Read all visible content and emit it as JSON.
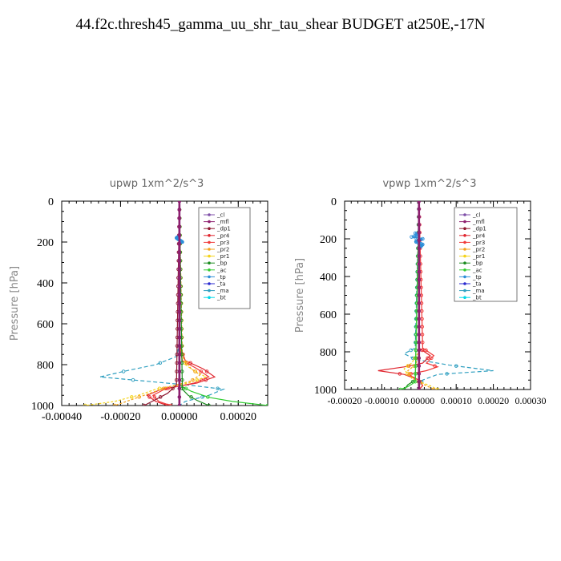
{
  "title": "44.f2c.thresh45_gamma_uu_shr_tau_shear  BUDGET at250E,-17N",
  "legend_entries": [
    "_cl",
    "_mfl",
    "_dp1",
    "_pr4",
    "_pr3",
    "_pr2",
    "_pr1",
    "_bp",
    "_ac",
    "_tp",
    "_ta",
    "_ma",
    "_bt"
  ],
  "series_colors": {
    "_cl": "#7f4fa8",
    "_mfl": "#8e1f6f",
    "_dp1": "#8e1830",
    "_pr4": "#e0262f",
    "_pr3": "#f03a3a",
    "_pr2": "#f3a31e",
    "_pr1": "#f4d31a",
    "_bp": "#1c8c20",
    "_ac": "#33cc33",
    "_tp": "#2c8ed8",
    "_ta": "#2a2ad0",
    "_ma": "#2f9fc0",
    "_bt": "#00d8e8"
  },
  "chart_data": [
    {
      "type": "line",
      "title": "upwp   1xm^2/s^3",
      "ylabel": "Pressure  [hPa]",
      "xlabel": "",
      "xlim": [
        -0.0004,
        0.0003
      ],
      "ylim": [
        1000,
        0
      ],
      "xticks": [
        "-0.00040",
        "-0.00020",
        "0.00000",
        "0.00020"
      ],
      "xtick_values": [
        -0.0004,
        -0.0002,
        0.0,
        0.0002
      ],
      "yticks": [
        "0",
        "200",
        "400",
        "600",
        "800",
        "1000"
      ],
      "ytick_values": [
        0,
        200,
        400,
        600,
        800,
        1000
      ],
      "legend_position": "top-right",
      "series": [
        {
          "name": "_ma",
          "p": [
            0,
            700,
            760,
            800,
            830,
            860,
            880,
            900,
            920,
            950,
            980,
            1000
          ],
          "x": [
            0,
            0,
            -1e-05,
            -8e-05,
            -0.00018,
            -0.00027,
            -0.00012,
            3e-05,
            0.00015,
            0.0001,
            2e-05,
            0
          ]
        },
        {
          "name": "_pr4",
          "p": [
            0,
            700,
            780,
            820,
            860,
            890,
            920,
            950,
            980,
            1000
          ],
          "x": [
            0,
            0,
            2e-05,
            8e-05,
            0.00012,
            6e-05,
            -6e-05,
            -0.00011,
            -8e-05,
            -4e-05
          ]
        },
        {
          "name": "_pr3",
          "p": [
            0,
            700,
            780,
            820,
            860,
            890,
            920,
            950,
            980,
            1000
          ],
          "x": [
            0,
            0,
            1e-05,
            6e-05,
            0.0001,
            5e-05,
            -5e-05,
            -9e-05,
            -7e-05,
            -3e-05
          ]
        },
        {
          "name": "_pr1",
          "p": [
            0,
            700,
            800,
            830,
            860,
            890,
            920,
            950,
            980,
            1000
          ],
          "x": [
            0,
            0,
            2e-05,
            5e-05,
            9e-05,
            3e-05,
            -8e-05,
            -0.00014,
            -0.00022,
            -0.00032
          ]
        },
        {
          "name": "_pr2",
          "p": [
            0,
            760,
            820,
            850,
            880,
            910,
            940,
            970,
            1000
          ],
          "x": [
            0,
            1e-05,
            4e-05,
            7e-05,
            4e-05,
            -4e-05,
            -0.0001,
            -0.00016,
            -0.00022
          ]
        },
        {
          "name": "_ac",
          "p": [
            0,
            900,
            930,
            960,
            980,
            1000
          ],
          "x": [
            0,
            0,
            4e-05,
            0.0001,
            0.00018,
            0.0003
          ]
        },
        {
          "name": "_bp",
          "p": [
            0,
            920,
            950,
            975,
            1000
          ],
          "x": [
            0,
            1e-05,
            3e-05,
            6e-05,
            0.0001
          ]
        },
        {
          "name": "_dp1",
          "p": [
            0,
            900,
            940,
            970,
            1000
          ],
          "x": [
            0,
            -1e-05,
            -4e-05,
            -8e-05,
            -0.00012
          ]
        },
        {
          "name": "_tp",
          "p": [
            170,
            180,
            190,
            200
          ],
          "x": [
            0.0,
            -1e-05,
            0.0,
            1e-05
          ]
        },
        {
          "name": "_cl",
          "p": [
            0,
            1000
          ],
          "x": [
            0,
            0
          ]
        },
        {
          "name": "_mfl",
          "p": [
            0,
            1000
          ],
          "x": [
            0,
            0
          ]
        }
      ]
    },
    {
      "type": "line",
      "title": "vpwp   1xm^2/s^3",
      "ylabel": "Pressure  [hPa]",
      "xlabel": "",
      "xlim": [
        -0.0002,
        0.0003
      ],
      "ylim": [
        1000,
        0
      ],
      "xticks": [
        "-0.00020",
        "-0.00010",
        "0.00000",
        "0.00010",
        "0.00020",
        "0.00030"
      ],
      "xtick_values": [
        -0.0002,
        -0.0001,
        0.0,
        0.0001,
        0.0002,
        0.0003
      ],
      "yticks": [
        "0",
        "200",
        "400",
        "600",
        "800",
        "1000"
      ],
      "ytick_values": [
        0,
        200,
        400,
        600,
        800,
        1000
      ],
      "legend_position": "top-right",
      "series": [
        {
          "name": "_ma",
          "p": [
            0,
            780,
            810,
            840,
            870,
            900,
            920,
            950,
            980,
            1000
          ],
          "x": [
            0,
            -1e-05,
            -4e-05,
            -1e-05,
            8e-05,
            0.0002,
            5e-05,
            1e-05,
            0.0,
            0
          ]
        },
        {
          "name": "_pr4",
          "p": [
            0,
            780,
            820,
            860,
            880,
            900,
            920,
            950,
            980,
            1000
          ],
          "x": [
            0,
            0.0,
            3e-05,
            1e-05,
            -4e-05,
            -0.00011,
            -4e-05,
            0.0,
            1e-05,
            0
          ]
        },
        {
          "name": "_pr3",
          "p": [
            0,
            780,
            820,
            860,
            880,
            900,
            920,
            950,
            980,
            1000
          ],
          "x": [
            0,
            1e-05,
            4e-05,
            2e-05,
            5e-05,
            2e-05,
            -3e-05,
            0.0,
            1e-05,
            0
          ]
        },
        {
          "name": "_pr1",
          "p": [
            0,
            800,
            860,
            890,
            920,
            950,
            980,
            1000
          ],
          "x": [
            0,
            0.0,
            -2e-05,
            -4e-05,
            -3e-05,
            -1e-05,
            3e-05,
            5e-05
          ]
        },
        {
          "name": "_pr2",
          "p": [
            0,
            820,
            870,
            900,
            940,
            970,
            1000
          ],
          "x": [
            0,
            0.0,
            -1e-05,
            -3e-05,
            -2e-05,
            1e-05,
            4e-05
          ]
        },
        {
          "name": "_bp",
          "p": [
            0,
            950,
            975,
            1000
          ],
          "x": [
            0,
            -1e-05,
            -3e-05,
            -4e-05
          ]
        },
        {
          "name": "_ac",
          "p": [
            0,
            960,
            985,
            1000
          ],
          "x": [
            0,
            -1e-05,
            -3e-05,
            -5e-05
          ]
        },
        {
          "name": "_tp",
          "p": [
            170,
            180,
            190,
            200,
            215,
            230,
            250
          ],
          "x": [
            -1e-05,
            0.0,
            -2e-05,
            1e-05,
            -1e-05,
            1e-05,
            0.0
          ]
        },
        {
          "name": "_dp1",
          "p": [
            0,
            1000
          ],
          "x": [
            0,
            0
          ]
        },
        {
          "name": "_cl",
          "p": [
            0,
            1000
          ],
          "x": [
            0,
            0
          ]
        },
        {
          "name": "_mfl",
          "p": [
            0,
            1000
          ],
          "x": [
            0,
            0
          ]
        }
      ]
    }
  ]
}
